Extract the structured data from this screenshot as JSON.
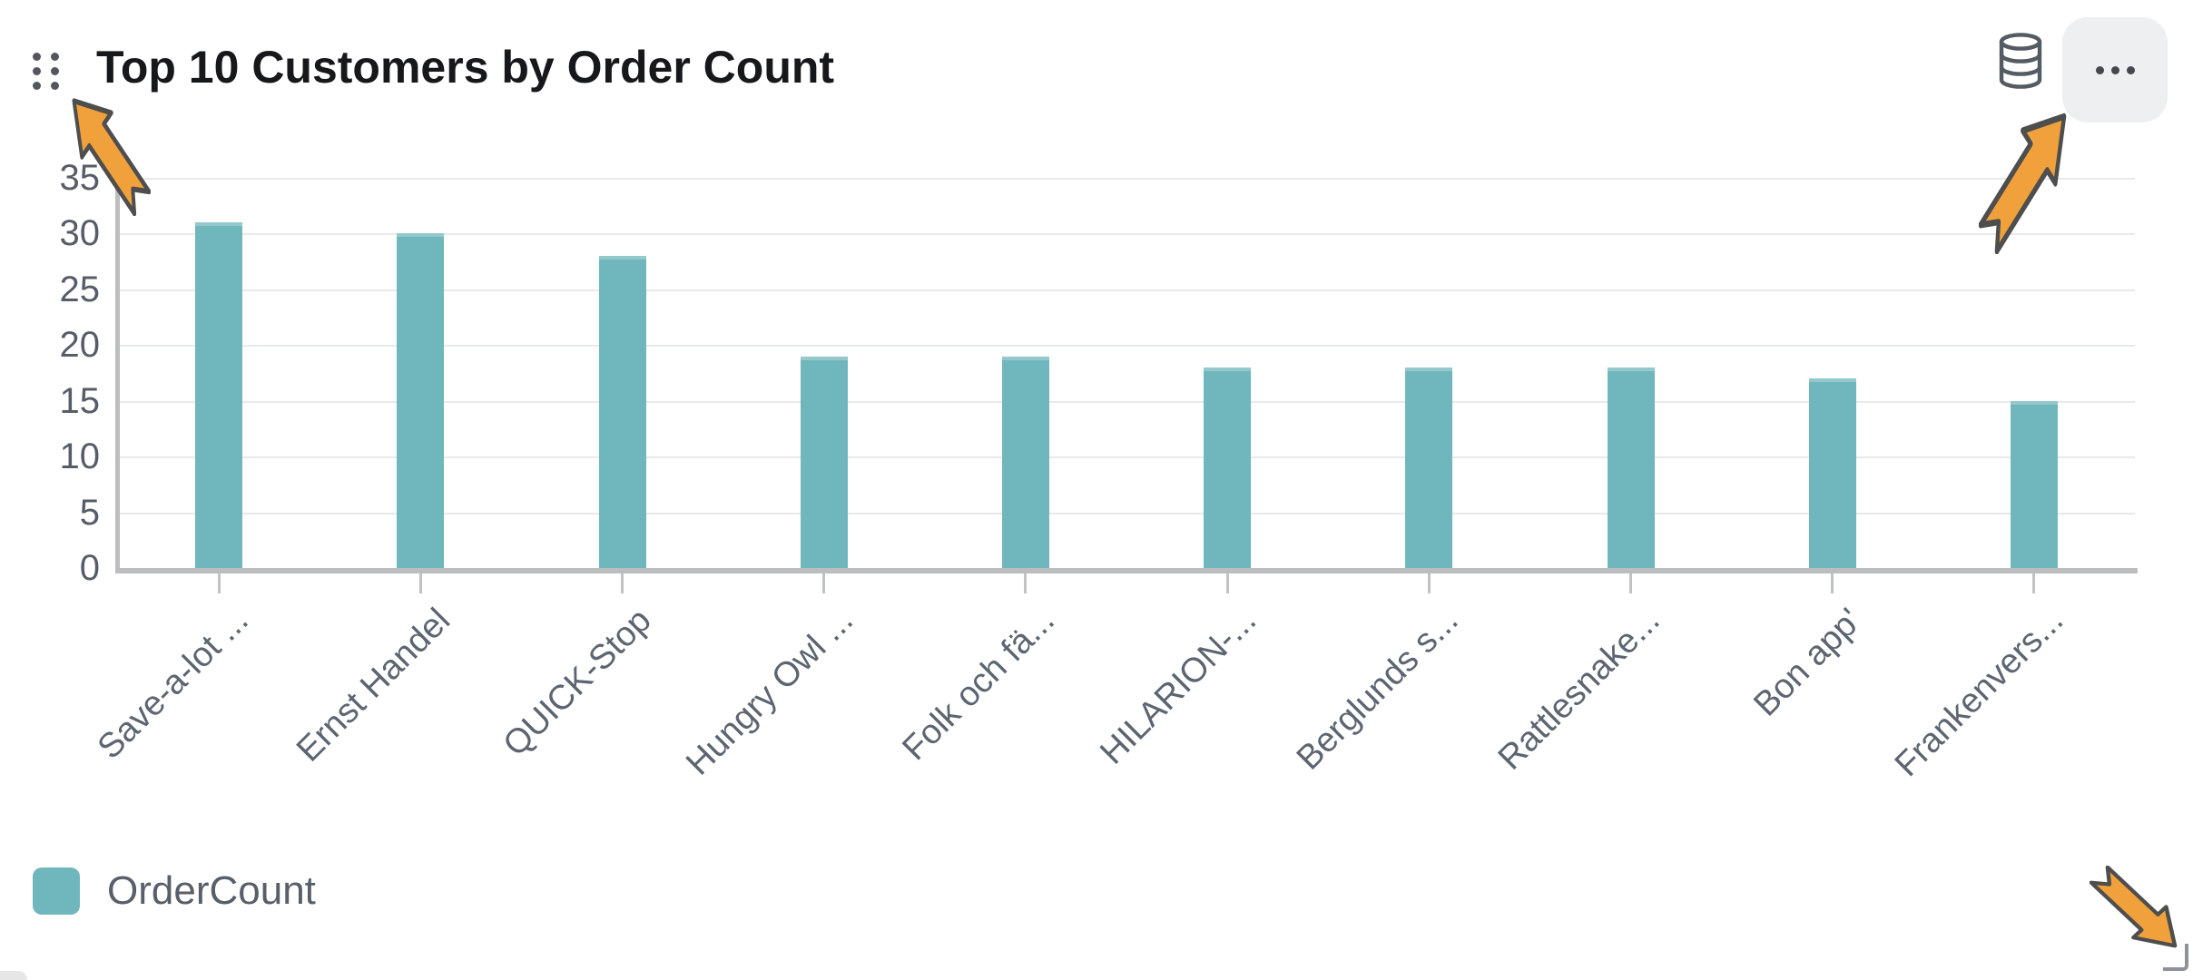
{
  "widget": {
    "title": "Top 10 Customers by Order Count",
    "icons": {
      "drag_handle": "drag-handle-icon",
      "database": "database-icon",
      "more_options": "ellipsis-icon",
      "resize": "resize-corner-icon"
    }
  },
  "legend": {
    "label": "OrderCount",
    "swatch_color": "#6FB7BC",
    "position": "bottom-left"
  },
  "chart_data": {
    "type": "bar",
    "title": "Top 10 Customers by Order Count",
    "categories": [
      "Save-a-lot ...",
      "Ernst Handel",
      "QUICK-Stop",
      "Hungry Owl ...",
      "Folk och fä...",
      "HILARION-...",
      "Berglunds s...",
      "Rattlesnake...",
      "Bon app'",
      "Frankenvers..."
    ],
    "series": [
      {
        "name": "OrderCount",
        "color": "#6FB7BC",
        "values": [
          31,
          30,
          28,
          19,
          19,
          18,
          18,
          18,
          17,
          15
        ]
      }
    ],
    "xlabel": "",
    "ylabel": "",
    "ylim": [
      0,
      35
    ],
    "yticks": [
      0,
      5,
      10,
      15,
      20,
      25,
      30,
      35
    ],
    "grid": true,
    "xtick_rotation": -45,
    "legend_position": "bottom-left"
  },
  "annotations": {
    "arrow_color": "#F0A13C",
    "arrow_outline": "#4E4E4E",
    "arrows": [
      {
        "target": "drag-handle",
        "direction": "up-left"
      },
      {
        "target": "more-options-button",
        "direction": "up-right"
      },
      {
        "target": "resize-handle",
        "direction": "down-right"
      }
    ]
  },
  "colors": {
    "bar": "#6FB7BC",
    "gridline": "#E8E9EB",
    "axis_line": "#BCBDBF",
    "tick_label": "#565D68",
    "title": "#17181B",
    "button_bg": "#EDEFF1"
  }
}
